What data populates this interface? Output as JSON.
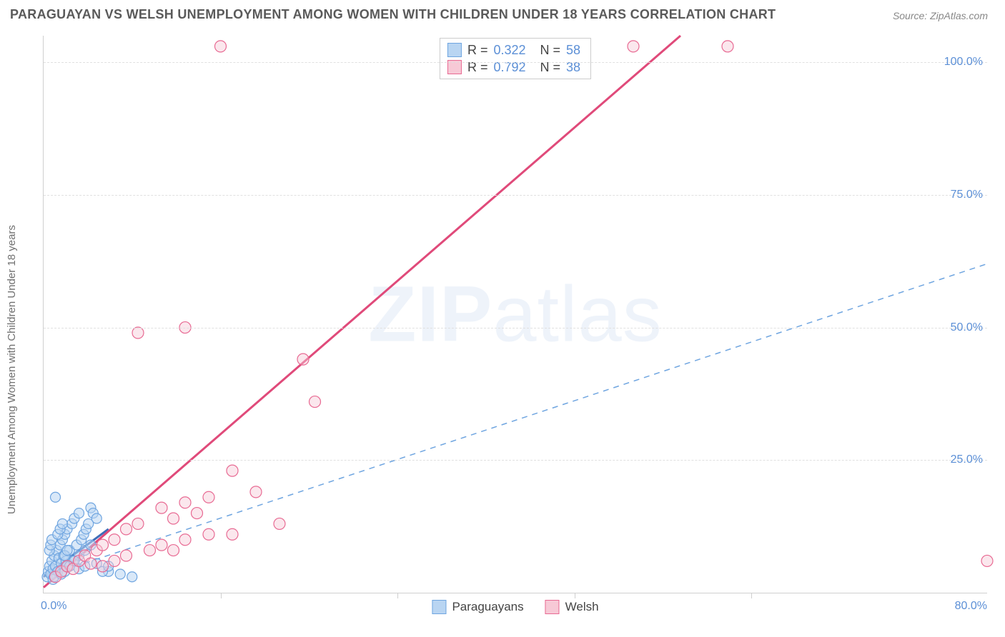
{
  "title": "PARAGUAYAN VS WELSH UNEMPLOYMENT AMONG WOMEN WITH CHILDREN UNDER 18 YEARS CORRELATION CHART",
  "source": "Source: ZipAtlas.com",
  "watermark_bold": "ZIP",
  "watermark_light": "atlas",
  "chart": {
    "type": "scatter",
    "y_axis_label": "Unemployment Among Women with Children Under 18 years",
    "xlim": [
      0,
      80
    ],
    "ylim": [
      0,
      105
    ],
    "x_ticks": [
      0,
      15,
      30,
      45,
      60,
      80
    ],
    "x_tick_labels": {
      "0": "0.0%",
      "80": "80.0%"
    },
    "y_ticks": [
      25,
      50,
      75,
      100
    ],
    "y_tick_labels": {
      "25": "25.0%",
      "50": "50.0%",
      "75": "75.0%",
      "100": "100.0%"
    },
    "grid_color": "#e0e0e0",
    "axis_color": "#cfcfcf",
    "tick_label_color": "#5b8fd6",
    "background_color": "#ffffff",
    "series": [
      {
        "name": "Paraguayans",
        "color_fill": "#b9d5f2",
        "color_stroke": "#6fa5e0",
        "marker_radius": 7,
        "fill_opacity": 0.55,
        "R": "0.322",
        "N": "58",
        "trend": {
          "style": "solid",
          "color": "#3f6db8",
          "width": 3,
          "x1": 0,
          "y1": 3,
          "x2": 5.5,
          "y2": 12
        },
        "points": [
          [
            0.3,
            3
          ],
          [
            0.4,
            4
          ],
          [
            0.5,
            5
          ],
          [
            0.6,
            3.5
          ],
          [
            0.7,
            6
          ],
          [
            0.8,
            4.5
          ],
          [
            0.9,
            7
          ],
          [
            1.0,
            5
          ],
          [
            1.1,
            8
          ],
          [
            1.2,
            4
          ],
          [
            1.3,
            6.5
          ],
          [
            1.4,
            9
          ],
          [
            1.5,
            5.5
          ],
          [
            1.6,
            10
          ],
          [
            1.7,
            7
          ],
          [
            1.8,
            11
          ],
          [
            1.9,
            6
          ],
          [
            2.0,
            12
          ],
          [
            2.2,
            8
          ],
          [
            2.4,
            13
          ],
          [
            2.6,
            14
          ],
          [
            2.8,
            9
          ],
          [
            3.0,
            15
          ],
          [
            3.2,
            10
          ],
          [
            3.4,
            11
          ],
          [
            3.6,
            12
          ],
          [
            3.8,
            13
          ],
          [
            4.0,
            16
          ],
          [
            4.2,
            15
          ],
          [
            4.5,
            14
          ],
          [
            1.0,
            18
          ],
          [
            0.8,
            2.5
          ],
          [
            0.9,
            3
          ],
          [
            1.5,
            3.5
          ],
          [
            2.0,
            5
          ],
          [
            2.5,
            6
          ],
          [
            3.0,
            7
          ],
          [
            0.5,
            8
          ],
          [
            0.6,
            9
          ],
          [
            0.7,
            10
          ],
          [
            1.8,
            4
          ],
          [
            2.2,
            5
          ],
          [
            2.6,
            6
          ],
          [
            3.5,
            8
          ],
          [
            4.0,
            9
          ],
          [
            1.2,
            11
          ],
          [
            1.4,
            12
          ],
          [
            1.6,
            13
          ],
          [
            1.8,
            7
          ],
          [
            2.0,
            8
          ],
          [
            5.5,
            4
          ],
          [
            6.5,
            3.5
          ],
          [
            7.5,
            3
          ],
          [
            3.0,
            4.5
          ],
          [
            3.5,
            5
          ],
          [
            4.5,
            5.5
          ],
          [
            5.0,
            4
          ],
          [
            5.5,
            5
          ]
        ]
      },
      {
        "name": "Welsh",
        "color_fill": "#f7c9d6",
        "color_stroke": "#e86a93",
        "marker_radius": 8,
        "fill_opacity": 0.45,
        "R": "0.792",
        "N": "38",
        "trend": {
          "style": "solid",
          "color": "#e04a7a",
          "width": 3,
          "x1": 0,
          "y1": 1,
          "x2": 54,
          "y2": 105
        },
        "trend2": {
          "style": "dashed",
          "color": "#6fa5e0",
          "width": 1.5,
          "x1": 0,
          "y1": 3,
          "x2": 80,
          "y2": 62
        },
        "points": [
          [
            1,
            3
          ],
          [
            1.5,
            4
          ],
          [
            2,
            5
          ],
          [
            2.5,
            4.5
          ],
          [
            3,
            6
          ],
          [
            3.5,
            7
          ],
          [
            4,
            5.5
          ],
          [
            4.5,
            8
          ],
          [
            5,
            9
          ],
          [
            6,
            10
          ],
          [
            7,
            12
          ],
          [
            8,
            13
          ],
          [
            9,
            8
          ],
          [
            10,
            16
          ],
          [
            11,
            14
          ],
          [
            12,
            17
          ],
          [
            13,
            15
          ],
          [
            14,
            18
          ],
          [
            16,
            23
          ],
          [
            18,
            19
          ],
          [
            20,
            13
          ],
          [
            8,
            49
          ],
          [
            12,
            50
          ],
          [
            15,
            103
          ],
          [
            22,
            44
          ],
          [
            23,
            36
          ],
          [
            43,
            103
          ],
          [
            50,
            103
          ],
          [
            58,
            103
          ],
          [
            16,
            11
          ],
          [
            7,
            7
          ],
          [
            6,
            6
          ],
          [
            5,
            5
          ],
          [
            10,
            9
          ],
          [
            11,
            8
          ],
          [
            12,
            10
          ],
          [
            14,
            11
          ],
          [
            80,
            6
          ]
        ]
      }
    ],
    "legend_labels": [
      "Paraguayans",
      "Welsh"
    ]
  }
}
